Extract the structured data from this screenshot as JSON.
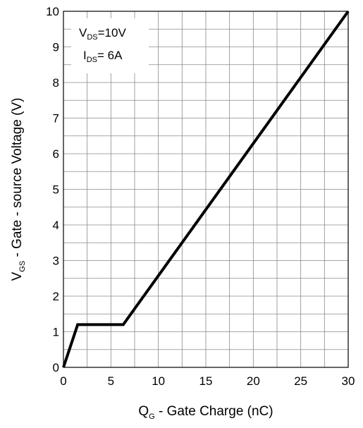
{
  "chart_data": {
    "type": "line",
    "xlabel": {
      "main": "Q",
      "sub": "G",
      "rest": " - Gate Charge (nC)"
    },
    "ylabel": {
      "main": "V",
      "sub": "GS",
      "rest": " - Gate - source Voltage (V)"
    },
    "xlim": [
      0,
      30
    ],
    "ylim": [
      0,
      10
    ],
    "x_ticks": [
      "0",
      "5",
      "10",
      "15",
      "20",
      "25",
      "30"
    ],
    "y_ticks": [
      "0",
      "1",
      "2",
      "3",
      "4",
      "5",
      "6",
      "7",
      "8",
      "9",
      "10"
    ],
    "grid": true,
    "minor_gridlines_per_major_x": 2,
    "minor_gridlines_per_major_y": 2,
    "annotations": [
      {
        "main": "V",
        "sub": "DS",
        "rest": "=10V"
      },
      {
        "main": "I",
        "sub": "DS",
        "rest": "= 6A"
      }
    ],
    "series": [
      {
        "x": [
          0,
          1.5,
          6.3,
          30
        ],
        "y": [
          0,
          1.2,
          1.2,
          10
        ],
        "color": "#000000"
      }
    ]
  }
}
